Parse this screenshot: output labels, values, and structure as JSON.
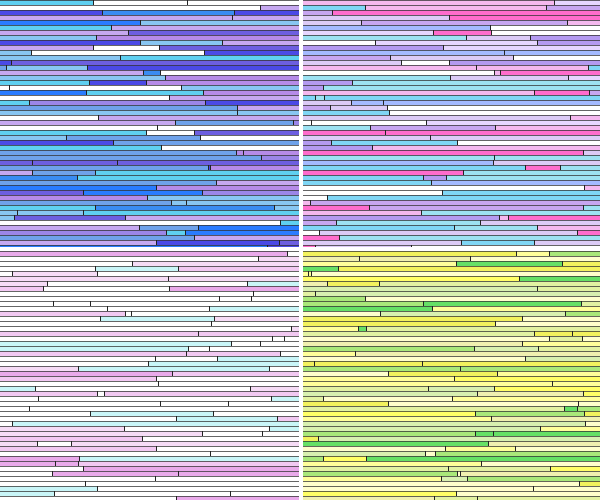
{
  "panels": [
    {
      "name": "top-left",
      "colors": [
        "#9b86e8",
        "#6d5fe0",
        "#4b4ae6",
        "#6fa2ea",
        "#88c6f2",
        "#b68be8",
        "#3a8cf2",
        "#ffffff",
        "#2a7cff",
        "#c6a8f0",
        "#5fd0f0"
      ]
    },
    {
      "name": "top-right",
      "colors": [
        "#dccbf6",
        "#ffffff",
        "#c7a6f0",
        "#ff6ccc",
        "#9de2f2",
        "#a4baff",
        "#e6d6ff",
        "#f4b8ee",
        "#7fd6f5",
        "#b49af0"
      ]
    },
    {
      "name": "bottom-left",
      "colors": [
        "#ffffff",
        "#ffffff",
        "#ffffff",
        "#f2c9f2",
        "#e9aaea",
        "#c9f6f8",
        "#f6dcf6",
        "#ffffff"
      ]
    },
    {
      "name": "bottom-right",
      "colors": [
        "#ffff9a",
        "#f2f25e",
        "#e2f2a2",
        "#a9e87a",
        "#66e066",
        "#ffffcc",
        "#f0f0b0",
        "#ffff66",
        "#d8f0b0"
      ]
    }
  ],
  "separator_color": "#333333",
  "background": "#ffffff"
}
